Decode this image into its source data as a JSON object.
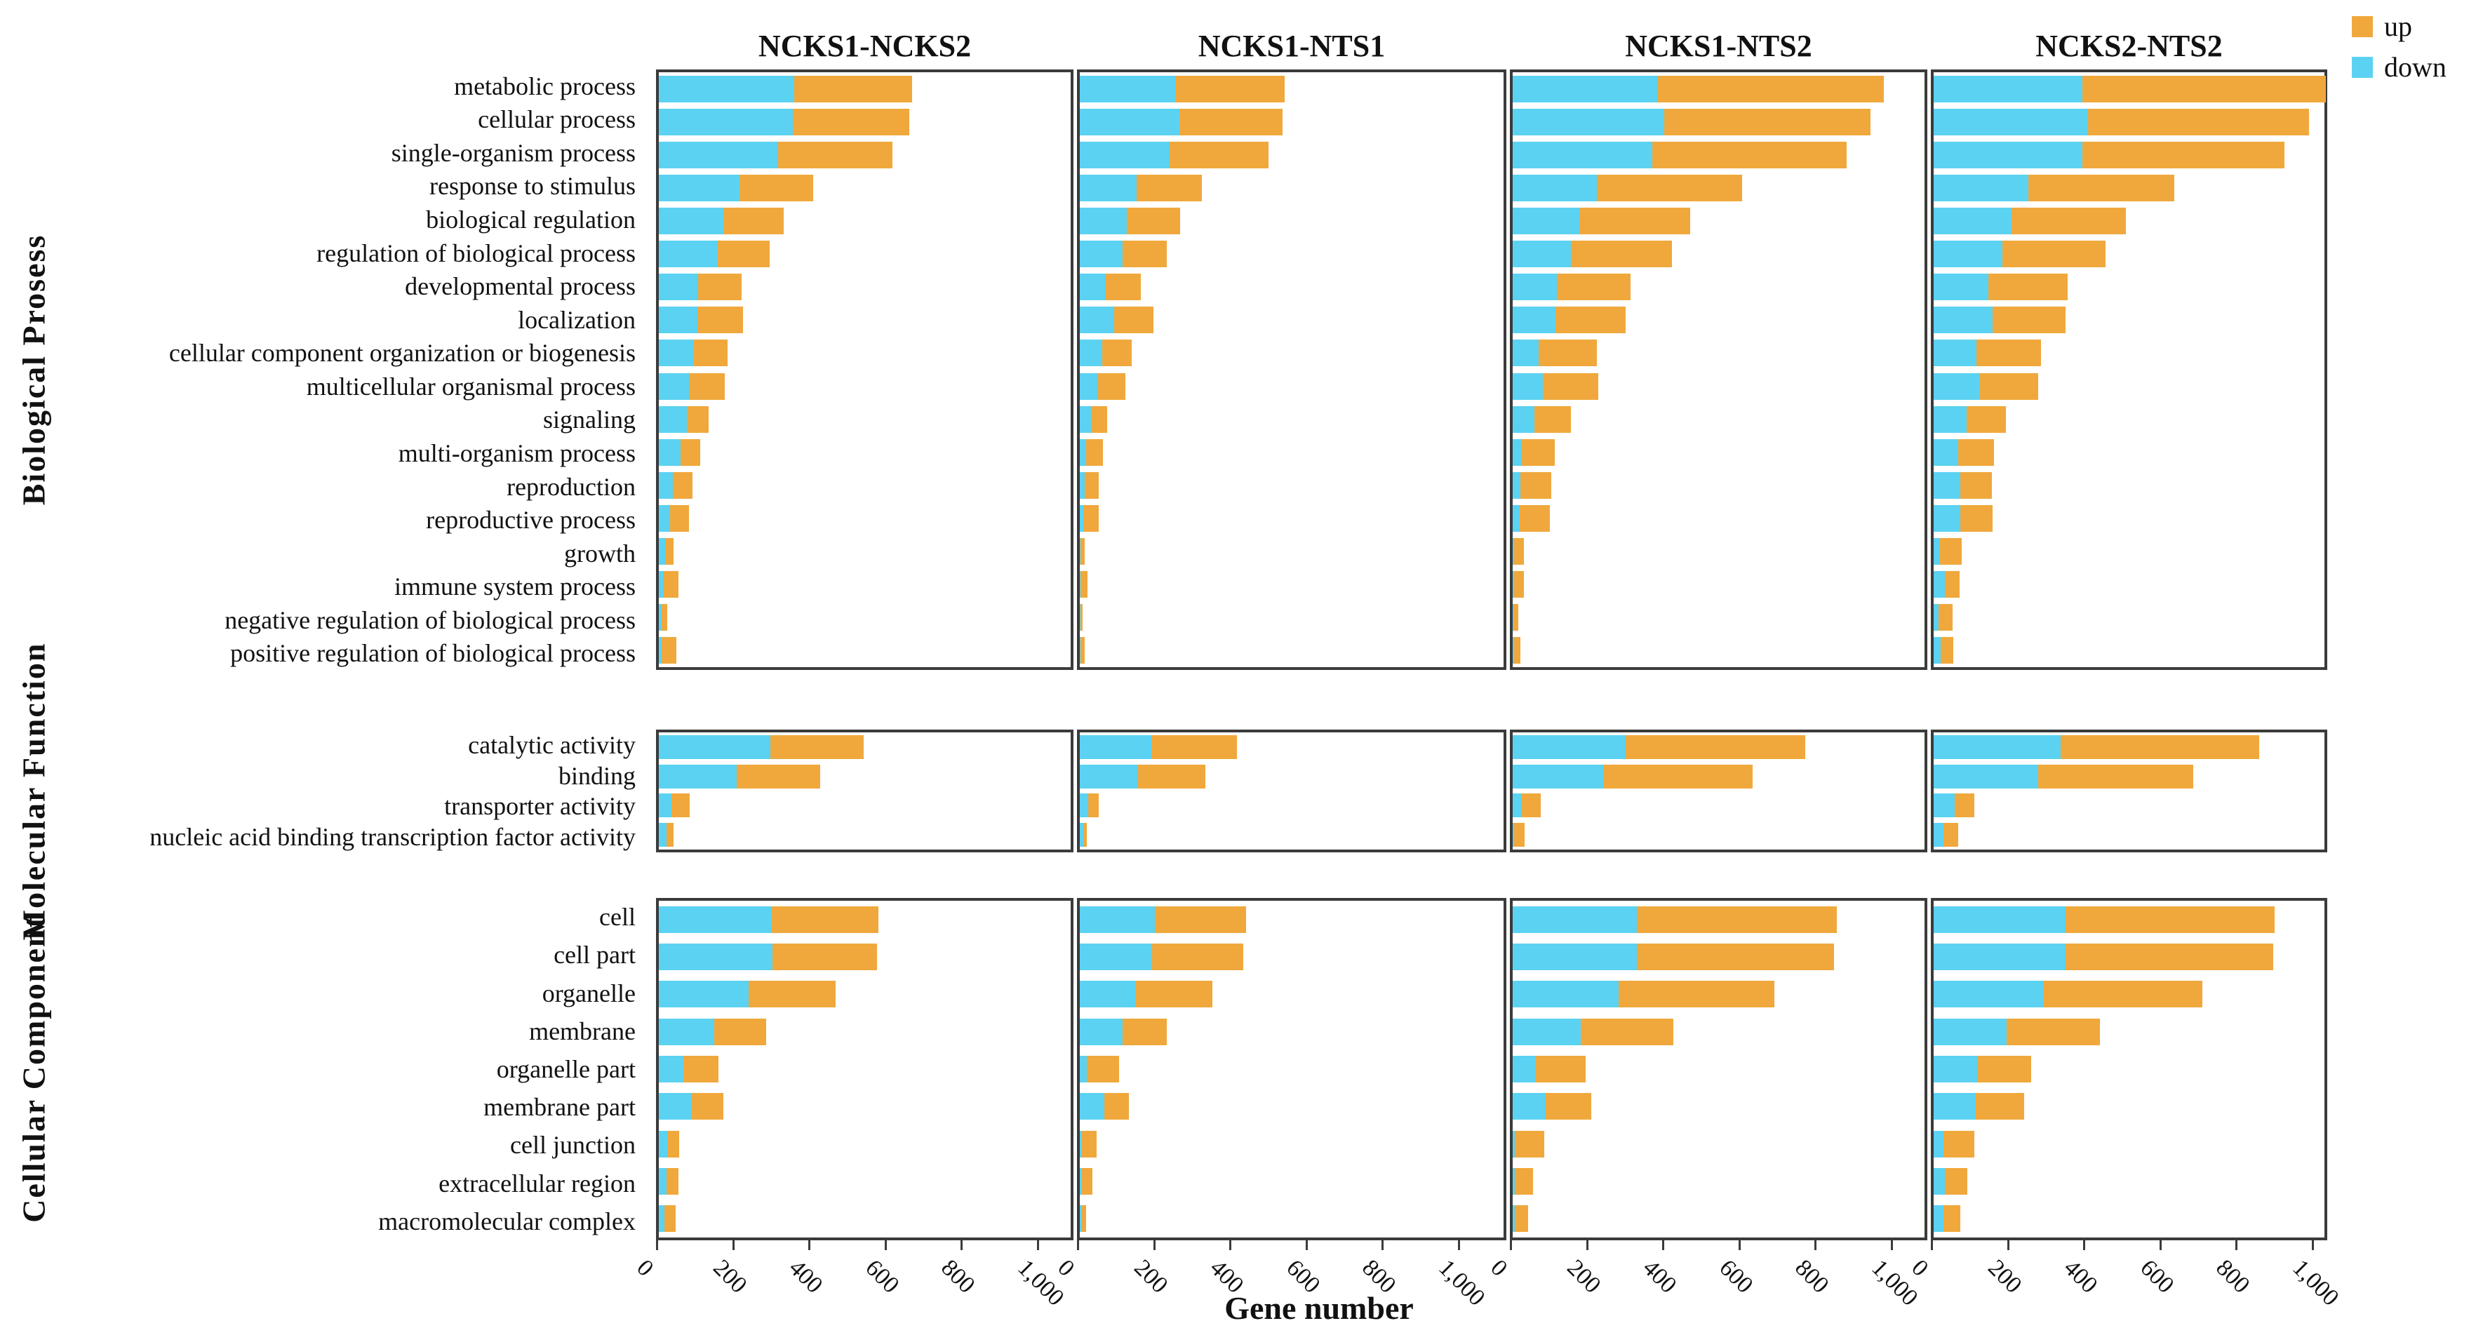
{
  "figure": {
    "xlabel": "Gene number"
  },
  "legend": {
    "items": [
      {
        "label": "up",
        "color": "#F0A83C"
      },
      {
        "label": "down",
        "color": "#5BD2F2"
      }
    ]
  },
  "chart_data": {
    "type": "bar",
    "stacked": true,
    "orientation": "horizontal",
    "title": "",
    "xlabel": "Gene number",
    "ylabel": "",
    "x_tick_values": [
      0,
      200,
      400,
      600,
      800,
      1000
    ],
    "x_tick_labels": [
      "0",
      "200",
      "400",
      "600",
      "800",
      "1,000"
    ],
    "xlim": [
      0,
      1100
    ],
    "grid": false,
    "legend_position": "top-right",
    "colors": {
      "up": "#F0A83C",
      "down": "#5BD2F2"
    },
    "sections": [
      {
        "id": "bp",
        "name": "Biological Prosess",
        "categories": [
          "metabolic process",
          "cellular process",
          "single-organism process",
          "response to stimulus",
          "biological regulation",
          "regulation of biological process",
          "developmental process",
          "localization",
          "cellular component organization or biogenesis",
          "multicellular organismal process",
          "signaling",
          "multi-organism process",
          "reproduction",
          "reproductive process",
          "growth",
          "immune system process",
          "negative regulation of biological process",
          "positive regulation of biological process"
        ]
      },
      {
        "id": "mf",
        "name": "Molecular Function",
        "categories": [
          "catalytic activity",
          "binding",
          "transporter activity",
          "nucleic acid binding transcription factor activity"
        ]
      },
      {
        "id": "cc",
        "name": "Cellular Component",
        "categories": [
          "cell",
          "cell part",
          "organelle",
          "membrane",
          "organelle part",
          "membrane part",
          "cell junction",
          "extracellular region",
          "macromolecular complex"
        ]
      }
    ],
    "panels": [
      {
        "title": "NCKS1-NCKS2",
        "series": {
          "bp": {
            "down": [
              356,
              352,
              313,
              212,
              169,
              155,
              103,
              101,
              93,
              79,
              73,
              57,
              37,
              30,
              18,
              13,
              7,
              8
            ],
            "up": [
              308,
              305,
              300,
              194,
              159,
              136,
              114,
              120,
              88,
              95,
              57,
              52,
              51,
              50,
              20,
              39,
              15,
              38
            ]
          },
          "mf": {
            "down": [
              293,
              204,
              33,
              20
            ],
            "up": [
              245,
              220,
              48,
              19
            ]
          },
          "cc": {
            "down": [
              297,
              299,
              236,
              145,
              65,
              84,
              23,
              21,
              15
            ],
            "up": [
              280,
              274,
              228,
              137,
              92,
              85,
              31,
              31,
              30
            ]
          }
        }
      },
      {
        "title": "NCKS1-NTS1",
        "series": {
          "bp": {
            "down": [
              253,
              261,
              236,
              149,
              123,
              113,
              69,
              91,
              59,
              47,
              29,
              17,
              12,
              10,
              2,
              2,
              1,
              2
            ],
            "up": [
              284,
              272,
              259,
              171,
              140,
              116,
              91,
              103,
              78,
              73,
              43,
              44,
              38,
              40,
              11,
              19,
              6,
              10
            ]
          },
          "mf": {
            "down": [
              187,
              152,
              23,
              9
            ],
            "up": [
              225,
              177,
              27,
              10
            ]
          },
          "cc": {
            "down": [
              197,
              190,
              146,
              113,
              19,
              64,
              3,
              3,
              3
            ],
            "up": [
              239,
              240,
              203,
              116,
              84,
              64,
              41,
              30,
              14
            ]
          }
        }
      },
      {
        "title": "NCKS1-NTS2",
        "series": {
          "bp": {
            "down": [
              381,
              398,
              366,
              221,
              175,
              152,
              116,
              113,
              69,
              80,
              57,
              23,
              21,
              19,
              4,
              4,
              2,
              4
            ],
            "up": [
              593,
              541,
              510,
              381,
              291,
              266,
              193,
              184,
              152,
              145,
              95,
              88,
              80,
              79,
              26,
              25,
              12,
              17
            ]
          },
          "mf": {
            "down": [
              296,
              238,
              24,
              4
            ],
            "up": [
              472,
              391,
              49,
              27
            ]
          },
          "cc": {
            "down": [
              326,
              326,
              278,
              179,
              61,
              87,
              6,
              6,
              6
            ],
            "up": [
              524,
              518,
              409,
              243,
              131,
              119,
              77,
              47,
              35
            ]
          }
        }
      },
      {
        "title": "NCKS2-NTS2",
        "series": {
          "bp": {
            "down": [
              391,
              405,
              390,
              249,
              204,
              181,
              143,
              155,
              112,
              122,
              87,
              65,
              70,
              70,
              16,
              30,
              13,
              18
            ],
            "up": [
              639,
              580,
              530,
              383,
              300,
              270,
              209,
              191,
              169,
              152,
              102,
              94,
              82,
              84,
              57,
              38,
              37,
              34
            ]
          },
          "mf": {
            "down": [
              333,
              275,
              55,
              26
            ],
            "up": [
              522,
              406,
              52,
              39
            ]
          },
          "cc": {
            "down": [
              346,
              346,
              288,
              192,
              115,
              110,
              26,
              30,
              26
            ],
            "up": [
              549,
              545,
              418,
              244,
              141,
              127,
              81,
              58,
              44
            ]
          }
        }
      }
    ]
  }
}
